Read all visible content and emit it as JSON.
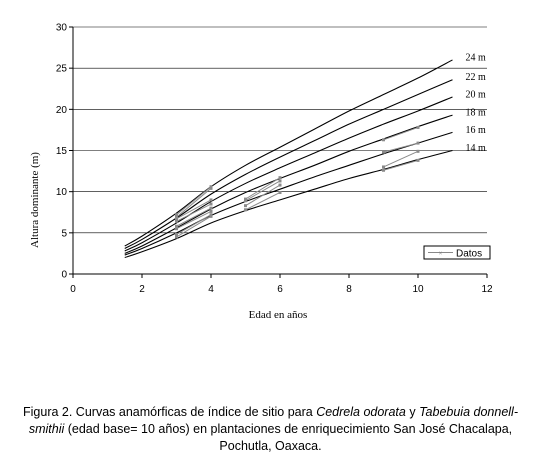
{
  "chart_data": {
    "type": "line",
    "xlabel": "Edad en años",
    "ylabel": "Altura dominante  (m)",
    "xlim": [
      0,
      12
    ],
    "ylim": [
      0,
      30
    ],
    "xticks": [
      "0",
      "2",
      "4",
      "6",
      "8",
      "10",
      "12"
    ],
    "yticks": [
      "0",
      "5",
      "10",
      "15",
      "20",
      "25",
      "30"
    ],
    "x": [
      1.5,
      2,
      3,
      4,
      5,
      6,
      7,
      8,
      9,
      10,
      11
    ],
    "series": [
      {
        "name": "24  m",
        "values": [
          3.4,
          4.6,
          7.4,
          10.6,
          13.2,
          15.4,
          17.6,
          19.8,
          21.8,
          23.8,
          26.0
        ]
      },
      {
        "name": "22 m",
        "values": [
          3.1,
          4.2,
          6.8,
          9.7,
          12.1,
          14.2,
          16.2,
          18.2,
          20.0,
          21.8,
          23.6
        ]
      },
      {
        "name": "20 m",
        "values": [
          2.8,
          3.8,
          6.2,
          8.8,
          11.0,
          12.9,
          14.7,
          16.5,
          18.2,
          19.8,
          21.5
        ]
      },
      {
        "name": "18 m",
        "values": [
          2.5,
          3.4,
          5.6,
          7.9,
          9.9,
          11.6,
          13.2,
          14.9,
          16.4,
          17.9,
          19.3
        ]
      },
      {
        "name": "16 m",
        "values": [
          2.3,
          3.1,
          5.0,
          7.1,
          8.8,
          10.3,
          11.8,
          13.2,
          14.6,
          15.9,
          17.2
        ]
      },
      {
        "name": "14 m",
        "values": [
          2.0,
          2.7,
          4.3,
          6.2,
          7.7,
          9.0,
          10.3,
          11.6,
          12.7,
          13.9,
          15.0
        ]
      }
    ],
    "observations": {
      "name": "Datos",
      "segments": [
        [
          [
            3,
            7.2
          ],
          [
            4,
            10.6
          ]
        ],
        [
          [
            3,
            6.9
          ],
          [
            4,
            10.4
          ]
        ],
        [
          [
            3,
            6.7
          ],
          [
            4,
            9.0
          ]
        ],
        [
          [
            3,
            6.4
          ],
          [
            4,
            8.5
          ]
        ],
        [
          [
            3,
            5.8
          ],
          [
            4,
            8.0
          ]
        ],
        [
          [
            3,
            5.5
          ],
          [
            4,
            7.6
          ]
        ],
        [
          [
            3,
            4.8
          ],
          [
            4,
            7.2
          ]
        ],
        [
          [
            3,
            4.5
          ],
          [
            4,
            7.0
          ]
        ],
        [
          [
            5,
            9.1
          ],
          [
            6,
            11.7
          ]
        ],
        [
          [
            5,
            8.9
          ],
          [
            6,
            11.3
          ]
        ],
        [
          [
            5,
            8.3
          ],
          [
            6,
            10.8
          ]
        ],
        [
          [
            5,
            7.8
          ],
          [
            6,
            9.9
          ]
        ],
        [
          [
            9,
            16.3
          ],
          [
            10,
            17.8
          ]
        ],
        [
          [
            9,
            14.8
          ],
          [
            10,
            15.9
          ]
        ],
        [
          [
            9,
            13.0
          ],
          [
            10,
            14.9
          ]
        ],
        [
          [
            9,
            12.6
          ],
          [
            10,
            13.8
          ]
        ]
      ]
    },
    "grid": "horizontal",
    "legend": "lower-right"
  },
  "caption": {
    "prefix": "Figura 2. Curvas anamórficas de índice de sitio para ",
    "species1": "Cedrela odorata",
    "conj": " y ",
    "species2": "Tabebuia donnell-smithii",
    "suffix": " (edad base= 10 años) en plantaciones de enriquecimiento San José Chacalapa, Pochutla, Oaxaca."
  }
}
